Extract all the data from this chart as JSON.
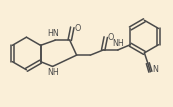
{
  "background_color": "#faefd8",
  "line_color": "#4a4a4a",
  "line_width": 1.1,
  "font_size": 5.8,
  "figsize": [
    1.73,
    1.07
  ],
  "dpi": 100,
  "xlim": [
    0,
    10
  ],
  "ylim": [
    0,
    6
  ]
}
